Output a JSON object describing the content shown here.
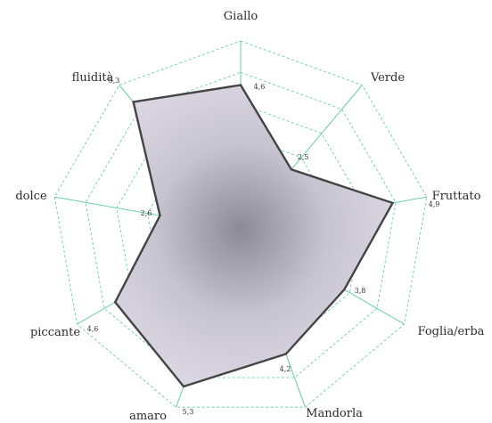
{
  "chart_data": {
    "type": "radar",
    "axes": [
      "Giallo",
      "Verde",
      "Fruttato",
      "Foglia/erba",
      "Mandorla",
      "amaro",
      "piccante",
      "dolce",
      "fluidità"
    ],
    "values": [
      4.6,
      2.5,
      4.9,
      3.8,
      4.2,
      5.3,
      4.6,
      2.6,
      5.3
    ],
    "value_labels": [
      "4,6",
      "2,5",
      "4,9",
      "3,8",
      "4,2",
      "5,3",
      "4,6",
      "2,6",
      "5,3"
    ],
    "range": [
      0,
      6
    ],
    "grid": "dashed nonagon rings",
    "colors": {
      "grid": "#57c6a4",
      "spoke": "#57c6a4",
      "polygon_fill": "#d9d6e2",
      "polygon_center": "#8d8a98",
      "polygon_stroke": "#444444"
    }
  }
}
